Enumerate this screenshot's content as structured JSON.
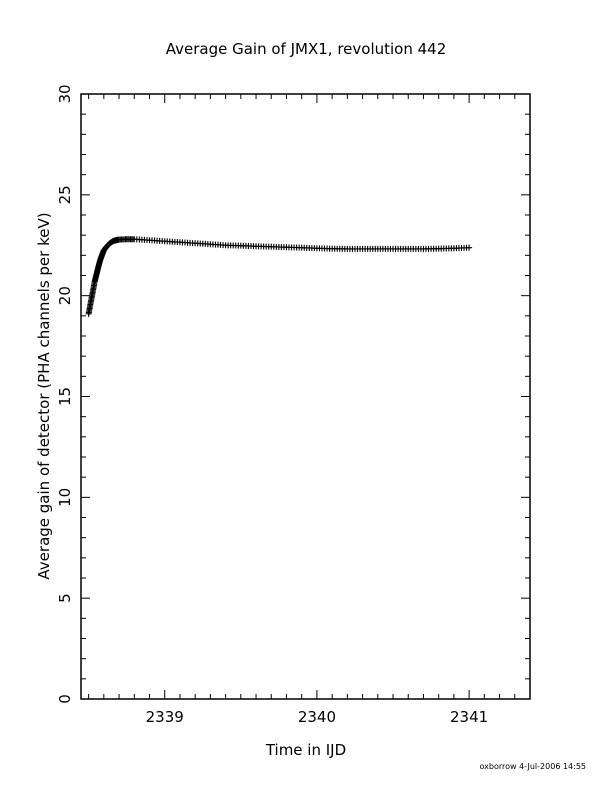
{
  "chart_data": {
    "type": "scatter",
    "title": "Average Gain of JMX1, revolution 442",
    "xlabel": "Time in IJD",
    "ylabel": "Average gain of detector (PHA channels per keV)",
    "xlim": [
      2338.45,
      2341.4
    ],
    "ylim": [
      0,
      30
    ],
    "x_ticks": [
      2339,
      2340,
      2341
    ],
    "x_tick_labels": [
      "2339",
      "2340",
      "2341"
    ],
    "y_ticks": [
      0,
      5,
      10,
      15,
      20,
      25,
      30
    ],
    "y_tick_labels": [
      "0",
      "5",
      "10",
      "15",
      "20",
      "25",
      "30"
    ],
    "marker": "plus",
    "series": [
      {
        "points": [
          [
            2338.5,
            19.1
          ],
          [
            2338.51,
            19.5
          ],
          [
            2338.52,
            19.9
          ],
          [
            2338.53,
            20.3
          ],
          [
            2338.54,
            20.7
          ],
          [
            2338.55,
            21.0
          ],
          [
            2338.56,
            21.3
          ],
          [
            2338.57,
            21.6
          ],
          [
            2338.58,
            21.85
          ],
          [
            2338.59,
            22.05
          ],
          [
            2338.6,
            22.25
          ],
          [
            2338.62,
            22.45
          ],
          [
            2338.64,
            22.6
          ],
          [
            2338.66,
            22.7
          ],
          [
            2338.68,
            22.75
          ],
          [
            2338.7,
            22.78
          ],
          [
            2338.75,
            22.8
          ],
          [
            2338.8,
            22.8
          ],
          [
            2338.9,
            22.75
          ],
          [
            2339.0,
            22.7
          ],
          [
            2339.1,
            22.65
          ],
          [
            2339.2,
            22.6
          ],
          [
            2339.3,
            22.55
          ],
          [
            2339.4,
            22.5
          ],
          [
            2339.5,
            22.48
          ],
          [
            2339.6,
            22.45
          ],
          [
            2339.7,
            22.43
          ],
          [
            2339.8,
            22.4
          ],
          [
            2339.9,
            22.38
          ],
          [
            2340.0,
            22.35
          ],
          [
            2340.1,
            22.33
          ],
          [
            2340.2,
            22.32
          ],
          [
            2340.3,
            22.32
          ],
          [
            2340.4,
            22.32
          ],
          [
            2340.5,
            22.32
          ],
          [
            2340.6,
            22.32
          ],
          [
            2340.7,
            22.32
          ],
          [
            2340.8,
            22.33
          ],
          [
            2340.9,
            22.35
          ],
          [
            2341.0,
            22.38
          ]
        ]
      }
    ]
  },
  "footer": {
    "credit": "oxborrow  4-Jul-2006 14:55"
  }
}
